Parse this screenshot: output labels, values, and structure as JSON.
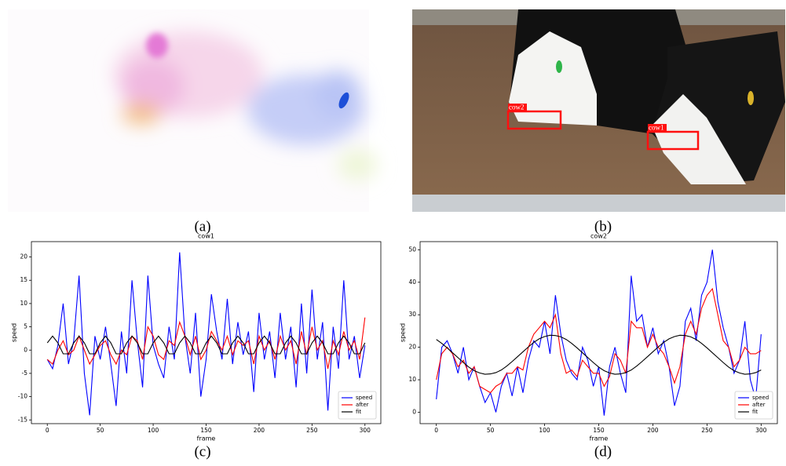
{
  "panel_labels": [
    "(a)",
    "(b)",
    "(c)",
    "(d)"
  ],
  "photo_labels": [
    "cow2",
    "cow1"
  ],
  "chart_data": [
    {
      "type": "line",
      "title": "cow1",
      "x_label": "frame",
      "y_label": "speed",
      "x": [
        0,
        5,
        10,
        15,
        20,
        25,
        30,
        35,
        40,
        45,
        50,
        55,
        60,
        65,
        70,
        75,
        80,
        85,
        90,
        95,
        100,
        105,
        110,
        115,
        120,
        125,
        130,
        135,
        140,
        145,
        150,
        155,
        160,
        165,
        170,
        175,
        180,
        185,
        190,
        195,
        200,
        205,
        210,
        215,
        220,
        225,
        230,
        235,
        240,
        245,
        250,
        255,
        260,
        265,
        270,
        275,
        280,
        285,
        290,
        295,
        300
      ],
      "series": [
        {
          "name": "speed",
          "color": "#0000ff",
          "values": [
            -2,
            -4,
            1,
            10,
            -3,
            2,
            16,
            -5,
            -14,
            3,
            -2,
            5,
            -3,
            -12,
            4,
            -5,
            15,
            2,
            -8,
            16,
            1,
            -3,
            -6,
            5,
            -2,
            21,
            3,
            -5,
            8,
            -10,
            -2,
            12,
            4,
            -2,
            11,
            -3,
            6,
            -1,
            4,
            -9,
            8,
            -2,
            4,
            -6,
            8,
            -2,
            5,
            -8,
            10,
            -5,
            13,
            -2,
            6,
            -13,
            5,
            -4,
            15,
            -2,
            3,
            -6,
            1
          ]
        },
        {
          "name": "after",
          "color": "#ff0000",
          "values": [
            -2,
            -3,
            0,
            2,
            -1,
            0,
            3,
            0,
            -3,
            -1,
            1,
            2,
            -1,
            -3,
            0,
            -1,
            3,
            2,
            -2,
            5,
            3,
            -1,
            -2,
            2,
            1,
            6,
            3,
            -1,
            3,
            -2,
            0,
            4,
            2,
            0,
            3,
            -1,
            2,
            1,
            2,
            -3,
            3,
            0,
            2,
            -2,
            3,
            0,
            2,
            -3,
            4,
            -1,
            5,
            0,
            2,
            -4,
            2,
            -1,
            4,
            0,
            2,
            -2,
            7
          ]
        },
        {
          "name": "fit",
          "color": "#000000",
          "values": [
            1.55,
            3,
            1.55,
            -0.8,
            -0.8,
            1.55,
            3,
            1.55,
            -0.8,
            -0.8,
            1.55,
            3,
            1.55,
            -0.8,
            -0.8,
            1.55,
            3,
            1.55,
            -0.8,
            -0.8,
            1.55,
            3,
            1.55,
            -0.8,
            -0.8,
            1.55,
            3,
            1.55,
            -0.8,
            -0.8,
            1.55,
            3,
            1.55,
            -0.8,
            -0.8,
            1.55,
            3,
            1.55,
            -0.8,
            -0.8,
            1.55,
            3,
            1.55,
            -0.8,
            -0.8,
            1.55,
            3,
            1.55,
            -0.8,
            -0.8,
            1.55,
            3,
            1.55,
            -0.8,
            -0.8,
            1.55,
            3,
            1.55,
            -0.8,
            -0.8,
            1.55
          ]
        }
      ],
      "xlim": [
        -15,
        315
      ],
      "xticks": [
        0,
        50,
        100,
        150,
        200,
        250,
        300
      ],
      "ylim": [
        -15.8,
        23.3
      ],
      "yticks": [
        -15,
        -10,
        -5,
        0,
        5,
        10,
        15,
        20
      ],
      "legend": "lower right",
      "grid": false
    },
    {
      "type": "line",
      "title": "cow2",
      "x_label": "frame",
      "y_label": "speed",
      "x": [
        0,
        5,
        10,
        15,
        20,
        25,
        30,
        35,
        40,
        45,
        50,
        55,
        60,
        65,
        70,
        75,
        80,
        85,
        90,
        95,
        100,
        105,
        110,
        115,
        120,
        125,
        130,
        135,
        140,
        145,
        150,
        155,
        160,
        165,
        170,
        175,
        180,
        185,
        190,
        195,
        200,
        205,
        210,
        215,
        220,
        225,
        230,
        235,
        240,
        245,
        250,
        255,
        260,
        265,
        270,
        275,
        280,
        285,
        290,
        295,
        300
      ],
      "series": [
        {
          "name": "speed",
          "color": "#0000ff",
          "values": [
            4,
            20,
            22,
            18,
            12,
            20,
            10,
            14,
            8,
            3,
            6,
            0,
            8,
            12,
            5,
            14,
            6,
            16,
            22,
            20,
            28,
            18,
            36,
            24,
            16,
            12,
            10,
            20,
            16,
            8,
            14,
            -1,
            14,
            20,
            12,
            6,
            42,
            28,
            30,
            20,
            26,
            18,
            22,
            14,
            2,
            8,
            28,
            32,
            22,
            36,
            40,
            50,
            34,
            26,
            20,
            12,
            16,
            28,
            10,
            4,
            24
          ]
        },
        {
          "name": "after",
          "color": "#ff0000",
          "values": [
            10,
            18,
            20,
            18,
            14,
            16,
            12,
            14,
            8,
            7,
            6,
            8,
            9,
            12,
            12,
            14,
            13,
            20,
            24,
            26,
            28,
            26,
            30,
            18,
            12,
            13,
            11,
            16,
            14,
            12,
            12,
            8,
            11,
            18,
            16,
            12,
            28,
            26,
            26,
            20,
            24,
            20,
            18,
            14,
            9,
            14,
            24,
            28,
            24,
            32,
            36,
            38,
            30,
            22,
            20,
            14,
            16,
            20,
            18,
            18,
            19
          ]
        },
        {
          "name": "fit",
          "color": "#000000",
          "values": [
            22.4,
            21.2,
            19.8,
            18.3,
            16.8,
            15.3,
            13.9,
            12.8,
            12.1,
            11.7,
            11.8,
            12.2,
            13.0,
            14.2,
            15.6,
            17.1,
            18.6,
            20.1,
            21.5,
            22.6,
            23.3,
            23.7,
            23.6,
            23.2,
            22.4,
            21.2,
            19.8,
            18.3,
            16.8,
            15.3,
            13.9,
            12.8,
            12.1,
            11.7,
            11.8,
            12.2,
            13.0,
            14.2,
            15.6,
            17.1,
            18.6,
            20.1,
            21.5,
            22.6,
            23.3,
            23.7,
            23.6,
            23.2,
            22.4,
            21.2,
            19.8,
            18.3,
            16.8,
            15.3,
            13.9,
            12.8,
            12.1,
            11.7,
            11.8,
            12.2,
            13.0
          ]
        }
      ],
      "xlim": [
        -15,
        315
      ],
      "xticks": [
        0,
        50,
        100,
        150,
        200,
        250,
        300
      ],
      "ylim": [
        -3.5,
        52.5
      ],
      "yticks": [
        0,
        10,
        20,
        30,
        40,
        50
      ],
      "legend": "lower right",
      "grid": false
    }
  ]
}
